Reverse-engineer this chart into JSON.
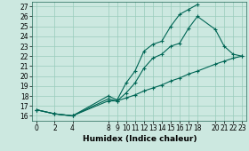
{
  "xlabel": "Humidex (Indice chaleur)",
  "background_color": "#cce8e0",
  "grid_color": "#99ccbb",
  "line_color": "#006655",
  "ylim": [
    15.5,
    27.5
  ],
  "xlim": [
    -0.5,
    23.5
  ],
  "yticks": [
    16,
    17,
    18,
    19,
    20,
    21,
    22,
    23,
    24,
    25,
    26,
    27
  ],
  "xticks": [
    0,
    2,
    4,
    8,
    9,
    10,
    11,
    12,
    13,
    14,
    15,
    16,
    17,
    18,
    20,
    21,
    22,
    23
  ],
  "line1_x": [
    0,
    2,
    4,
    8,
    9,
    10,
    11,
    12,
    13,
    14,
    15,
    16,
    17,
    18
  ],
  "line1_y": [
    16.6,
    16.2,
    16.0,
    18.0,
    17.6,
    19.3,
    20.5,
    22.5,
    23.2,
    23.5,
    25.0,
    26.2,
    26.7,
    27.2
  ],
  "line2_x": [
    0,
    2,
    4,
    8,
    9,
    10,
    11,
    12,
    13,
    14,
    15,
    16,
    17,
    18,
    20,
    21,
    22,
    23
  ],
  "line2_y": [
    16.6,
    16.2,
    16.0,
    17.7,
    17.5,
    18.3,
    19.3,
    20.8,
    21.8,
    22.2,
    23.0,
    23.3,
    24.8,
    26.0,
    24.7,
    23.0,
    22.2,
    22.0
  ],
  "line3_x": [
    0,
    2,
    4,
    8,
    9,
    10,
    11,
    12,
    13,
    14,
    15,
    16,
    17,
    18,
    20,
    21,
    22,
    23
  ],
  "line3_y": [
    16.6,
    16.2,
    16.0,
    17.5,
    17.5,
    17.8,
    18.1,
    18.5,
    18.8,
    19.1,
    19.5,
    19.8,
    20.2,
    20.5,
    21.2,
    21.5,
    21.8,
    22.0
  ],
  "marker": "+",
  "markersize": 3,
  "linewidth": 0.8,
  "tick_labelsize": 5.5,
  "xlabel_fontsize": 6.5
}
